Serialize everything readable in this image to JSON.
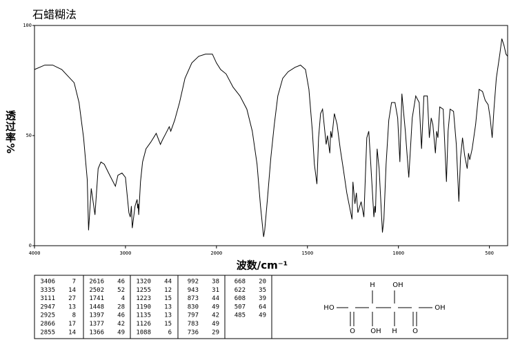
{
  "chart_data": {
    "type": "line",
    "title": "石蜡糊法",
    "xlabel": "波数/cm⁻¹",
    "ylabel": "透过率%",
    "x": [
      4000,
      3887,
      3800,
      3700,
      3564,
      3510,
      3460,
      3420,
      3406,
      3376,
      3335,
      3300,
      3270,
      3233,
      3173,
      3111,
      3083,
      3038,
      3000,
      2977,
      2962,
      2947,
      2935,
      2925,
      2895,
      2872,
      2866,
      2860,
      2855,
      2835,
      2812,
      2774,
      2722,
      2662,
      2616,
      2594,
      2556,
      2519,
      2502,
      2459,
      2406,
      2346,
      2271,
      2195,
      2120,
      2045,
      2000,
      1977,
      1947,
      1909,
      1871,
      1833,
      1803,
      1777,
      1758,
      1741,
      1735,
      1720,
      1701,
      1682,
      1663,
      1636,
      1606,
      1568,
      1538,
      1511,
      1492,
      1473,
      1462,
      1448,
      1439,
      1428,
      1417,
      1397,
      1390,
      1377,
      1372,
      1366,
      1352,
      1337,
      1320,
      1303,
      1284,
      1255,
      1250,
      1239,
      1231,
      1223,
      1205,
      1190,
      1174,
      1163,
      1152,
      1135,
      1130,
      1126,
      1117,
      1106,
      1088,
      1080,
      1068,
      1053,
      1038,
      1019,
      1004,
      992,
      981,
      962,
      943,
      924,
      905,
      886,
      873,
      860,
      841,
      830,
      820,
      811,
      797,
      790,
      783,
      773,
      754,
      736,
      727,
      716,
      697,
      682,
      668,
      659,
      648,
      636,
      622,
      615,
      608,
      595,
      576,
      557,
      538,
      523,
      507,
      496,
      485,
      475,
      462,
      443,
      432,
      420,
      409,
      400
    ],
    "values": [
      80,
      82,
      82,
      80,
      74,
      65,
      49,
      30,
      7,
      26,
      14,
      35,
      38,
      37,
      32,
      27,
      32,
      33,
      31,
      21,
      15,
      13,
      18,
      8,
      18,
      21,
      17,
      19,
      14,
      29,
      38,
      44,
      47,
      51,
      46,
      48,
      51,
      54,
      52,
      57,
      65,
      76,
      83,
      86,
      87,
      87,
      83,
      80,
      78,
      72,
      68,
      62,
      52,
      37,
      18,
      4,
      7,
      21,
      40,
      55,
      68,
      76,
      79,
      81,
      82,
      80,
      71,
      52,
      37,
      28,
      49,
      60,
      62,
      46,
      50,
      42,
      52,
      49,
      60,
      55,
      44,
      35,
      24,
      12,
      29,
      19,
      24,
      15,
      20,
      13,
      49,
      52,
      37,
      13,
      18,
      15,
      44,
      35,
      6,
      12,
      37,
      57,
      65,
      65,
      58,
      38,
      69,
      52,
      31,
      58,
      68,
      65,
      44,
      68,
      68,
      49,
      58,
      55,
      42,
      52,
      49,
      63,
      62,
      29,
      52,
      62,
      61,
      46,
      20,
      40,
      49,
      41,
      35,
      42,
      39,
      44,
      55,
      71,
      70,
      66,
      64,
      58,
      49,
      62,
      76,
      87,
      94,
      91,
      87,
      86
    ],
    "color": "#000000",
    "xlim": [
      4000,
      400
    ],
    "xticks": [
      4000,
      3000,
      2000,
      1500,
      1000,
      500
    ],
    "ylim": [
      0,
      100
    ],
    "yticks": [
      0,
      50,
      100
    ]
  },
  "peak_table": {
    "columns": [
      [
        [
          3406,
          7
        ],
        [
          3335,
          14
        ],
        [
          3111,
          27
        ],
        [
          2947,
          13
        ],
        [
          2925,
          8
        ],
        [
          2866,
          17
        ],
        [
          2855,
          14
        ]
      ],
      [
        [
          2616,
          46
        ],
        [
          2502,
          52
        ],
        [
          1741,
          4
        ],
        [
          1448,
          28
        ],
        [
          1397,
          46
        ],
        [
          1377,
          42
        ],
        [
          1366,
          49
        ]
      ],
      [
        [
          1320,
          44
        ],
        [
          1255,
          12
        ],
        [
          1223,
          15
        ],
        [
          1190,
          13
        ],
        [
          1135,
          13
        ],
        [
          1126,
          15
        ],
        [
          1088,
          6
        ]
      ],
      [
        [
          992,
          38
        ],
        [
          943,
          31
        ],
        [
          873,
          44
        ],
        [
          830,
          49
        ],
        [
          797,
          42
        ],
        [
          783,
          49
        ],
        [
          736,
          29
        ]
      ],
      [
        [
          668,
          20
        ],
        [
          622,
          35
        ],
        [
          608,
          39
        ],
        [
          507,
          64
        ],
        [
          485,
          49
        ]
      ]
    ]
  },
  "structure": {
    "atoms": [
      "H",
      "OH",
      "HO",
      "OH",
      "O",
      "OH",
      "H",
      "O"
    ]
  }
}
